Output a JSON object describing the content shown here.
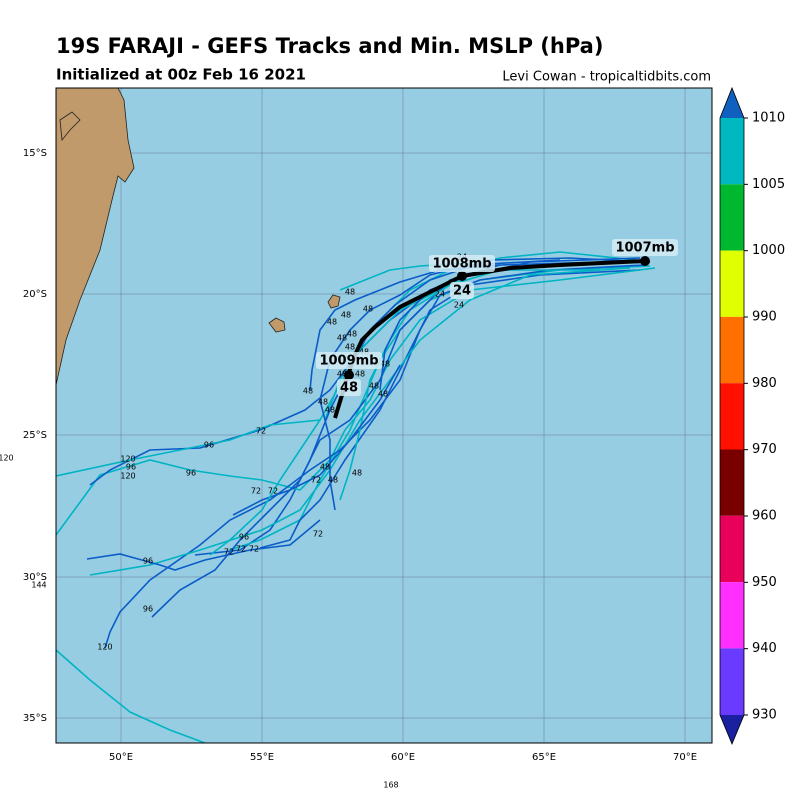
{
  "header": {
    "title": "19S FARAJI - GEFS Tracks and Min. MSLP (hPa)",
    "subtitle": "Initialized at 00z Feb 16 2021",
    "credit": "Levi Cowan - tropicaltidbits.com"
  },
  "map": {
    "lat_labels": [
      "15°S",
      "20°S",
      "25°S",
      "30°S",
      "35°S"
    ],
    "lon_labels": [
      "50°E",
      "55°E",
      "60°E",
      "65°E",
      "70°E"
    ],
    "mslp_labels": [
      "1007mb",
      "1008mb",
      "1009mb"
    ],
    "hour_labels": [
      "24",
      "48"
    ],
    "track_hour_labels": [
      "48",
      "48",
      "48",
      "48",
      "48",
      "48",
      "48",
      "48",
      "48",
      "48",
      "48",
      "48",
      "48",
      "48",
      "48",
      "48",
      "48",
      "48",
      "48",
      "24",
      "24",
      "24",
      "72",
      "72",
      "72",
      "72",
      "72",
      "72",
      "72",
      "72",
      "96",
      "96",
      "96",
      "96",
      "96",
      "96",
      "120",
      "120",
      "120"
    ],
    "edge_labels": [
      "120",
      "144",
      "168"
    ]
  },
  "colorbar": {
    "labels": [
      "1010",
      "1005",
      "1000",
      "990",
      "980",
      "970",
      "960",
      "950",
      "940",
      "930"
    ]
  }
}
